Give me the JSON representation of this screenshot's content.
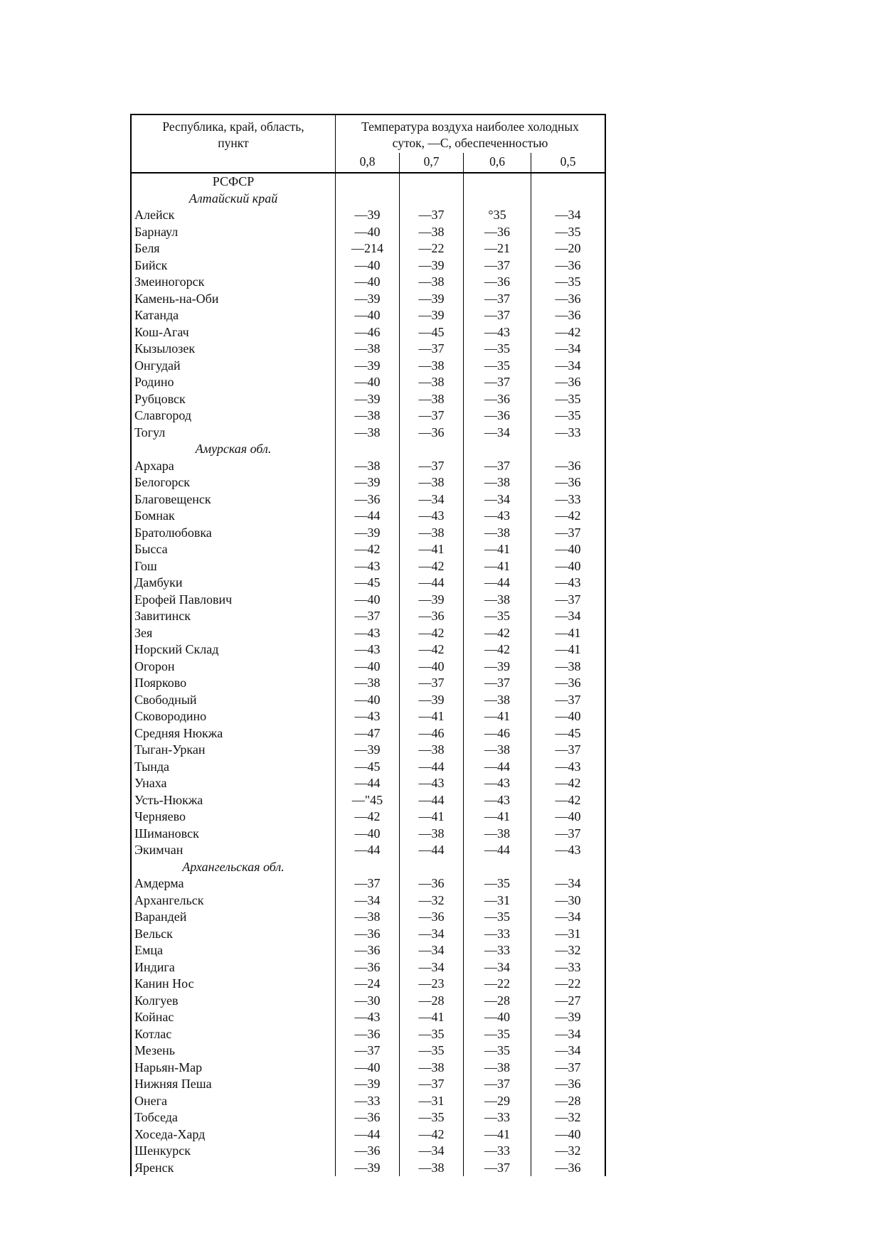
{
  "table": {
    "name_header_line1": "Республика, край, область,",
    "name_header_line2": "пункт",
    "temp_header_line1": "Температура воздуха наиболее холодных",
    "temp_header_line2": "суток, —С, обеспеченностью",
    "prob_headers": [
      "0,8",
      "0,7",
      "0,6",
      "0,5"
    ],
    "rows": [
      {
        "type": "group",
        "label": "РСФСР",
        "italic": false
      },
      {
        "type": "group",
        "label": "Алтайский край",
        "italic": true
      },
      {
        "type": "data",
        "name": "Алейск",
        "values": [
          "—39",
          "—37",
          "°35",
          "—34"
        ]
      },
      {
        "type": "data",
        "name": "Барнаул",
        "values": [
          "—40",
          "—38",
          "—36",
          "—35"
        ]
      },
      {
        "type": "data",
        "name": "Беля",
        "values": [
          "—214",
          "—22",
          "—21",
          "—20"
        ]
      },
      {
        "type": "data",
        "name": "Бийск",
        "values": [
          "—40",
          "—39",
          "—37",
          "—36"
        ]
      },
      {
        "type": "data",
        "name": "Змеиногорск",
        "values": [
          "—40",
          "—38",
          "—36",
          "—35"
        ]
      },
      {
        "type": "data",
        "name": "Камень-на-Оби",
        "values": [
          "—39",
          "—39",
          "—37",
          "—36"
        ]
      },
      {
        "type": "data",
        "name": "Катанда",
        "values": [
          "—40",
          "—39",
          "—37",
          "—36"
        ]
      },
      {
        "type": "data",
        "name": "Кош-Агач",
        "values": [
          "—46",
          "—45",
          "—43",
          "—42"
        ]
      },
      {
        "type": "data",
        "name": "Кызылозек",
        "values": [
          "—38",
          "—37",
          "—35",
          "—34"
        ]
      },
      {
        "type": "data",
        "name": "Онгудай",
        "values": [
          "—39",
          "—38",
          "—35",
          "—34"
        ]
      },
      {
        "type": "data",
        "name": "Родино",
        "values": [
          "—40",
          "—38",
          "—37",
          "—36"
        ]
      },
      {
        "type": "data",
        "name": "Рубцовск",
        "values": [
          "—39",
          "—38",
          "—36",
          "—35"
        ]
      },
      {
        "type": "data",
        "name": "Славгород",
        "values": [
          "—38",
          "—37",
          "—36",
          "—35"
        ]
      },
      {
        "type": "data",
        "name": "Тогул",
        "values": [
          "—38",
          "—36",
          "—34",
          "—33"
        ]
      },
      {
        "type": "group",
        "label": "Амурская обл.",
        "italic": true
      },
      {
        "type": "data",
        "name": "Архара",
        "values": [
          "—38",
          "—37",
          "—37",
          "—36"
        ]
      },
      {
        "type": "data",
        "name": "Белогорск",
        "values": [
          "—39",
          "—38",
          "—38",
          "—36"
        ]
      },
      {
        "type": "data",
        "name": "Благовещенск",
        "values": [
          "—36",
          "—34",
          "—34",
          "—33"
        ]
      },
      {
        "type": "data",
        "name": "Бомнак",
        "values": [
          "—44",
          "—43",
          "—43",
          "—42"
        ]
      },
      {
        "type": "data",
        "name": "Братолюбовка",
        "values": [
          "—39",
          "—38",
          "—38",
          "—37"
        ]
      },
      {
        "type": "data",
        "name": "Бысса",
        "values": [
          "—42",
          "—41",
          "—41",
          "—40"
        ]
      },
      {
        "type": "data",
        "name": "Гош",
        "values": [
          "—43",
          "—42",
          "—41",
          "—40"
        ]
      },
      {
        "type": "data",
        "name": "Дамбуки",
        "values": [
          "—45",
          "—44",
          "—44",
          "—43"
        ]
      },
      {
        "type": "data",
        "name": "Ерофей Павлович",
        "values": [
          "—40",
          "—39",
          "—38",
          "—37"
        ]
      },
      {
        "type": "data",
        "name": "Завитинск",
        "values": [
          "—37",
          "—36",
          "—35",
          "—34"
        ]
      },
      {
        "type": "data",
        "name": "Зея",
        "values": [
          "—43",
          "—42",
          "—42",
          "—41"
        ]
      },
      {
        "type": "data",
        "name": "Норский Склад",
        "values": [
          "—43",
          "—42",
          "—42",
          "—41"
        ]
      },
      {
        "type": "data",
        "name": "Огорон",
        "values": [
          "—40",
          "—40",
          "—39",
          "—38"
        ]
      },
      {
        "type": "data",
        "name": "Поярково",
        "values": [
          "—38",
          "—37",
          "—37",
          "—36"
        ]
      },
      {
        "type": "data",
        "name": "Свободный",
        "values": [
          "—40",
          "—39",
          "—38",
          "—37"
        ]
      },
      {
        "type": "data",
        "name": "Сковородино",
        "values": [
          "—43",
          "—41",
          "—41",
          "—40"
        ]
      },
      {
        "type": "data",
        "name": "Средняя Нюкжа",
        "values": [
          "—47",
          "—46",
          "—46",
          "—45"
        ]
      },
      {
        "type": "data",
        "name": "Тыган-Уркан",
        "values": [
          "—39",
          "—38",
          "—38",
          "—37"
        ]
      },
      {
        "type": "data",
        "name": "Тында",
        "values": [
          "—45",
          "—44",
          "—44",
          "—43"
        ]
      },
      {
        "type": "data",
        "name": "Унаха",
        "values": [
          "—44",
          "—43",
          "—43",
          "—42"
        ]
      },
      {
        "type": "data",
        "name": "Усть-Нюкжа",
        "values": [
          "—\"45",
          "—44",
          "—43",
          "—42"
        ]
      },
      {
        "type": "data",
        "name": "Черняево",
        "values": [
          "—42",
          "—41",
          "—41",
          "—40"
        ]
      },
      {
        "type": "data",
        "name": "Шимановск",
        "values": [
          "—40",
          "—38",
          "—38",
          "—37"
        ]
      },
      {
        "type": "data",
        "name": "Экимчан",
        "values": [
          "—44",
          "—44",
          "—44",
          "—43"
        ]
      },
      {
        "type": "group",
        "label": "Архангельская обл.",
        "italic": true
      },
      {
        "type": "data",
        "name": "Амдерма",
        "values": [
          "—37",
          "—36",
          "—35",
          "—34"
        ]
      },
      {
        "type": "data",
        "name": "Архангельск",
        "values": [
          "—34",
          "—32",
          "—31",
          "—30"
        ]
      },
      {
        "type": "data",
        "name": "Варандей",
        "values": [
          "—38",
          "—36",
          "—35",
          "—34"
        ]
      },
      {
        "type": "data",
        "name": "Вельск",
        "values": [
          "—36",
          "—34",
          "—33",
          "—31"
        ]
      },
      {
        "type": "data",
        "name": "Емца",
        "values": [
          "—36",
          "—34",
          "—33",
          "—32"
        ]
      },
      {
        "type": "data",
        "name": "Индига",
        "values": [
          "—36",
          "—34",
          "—34",
          "—33"
        ]
      },
      {
        "type": "data",
        "name": "Канин Нос",
        "values": [
          "—24",
          "—23",
          "—22",
          "—22"
        ]
      },
      {
        "type": "data",
        "name": "Колгуев",
        "values": [
          "—30",
          "—28",
          "—28",
          "—27"
        ]
      },
      {
        "type": "data",
        "name": "Койнас",
        "values": [
          "—43",
          "—41",
          "—40",
          "—39"
        ]
      },
      {
        "type": "data",
        "name": "Котлас",
        "values": [
          "—36",
          "—35",
          "—35",
          "—34"
        ]
      },
      {
        "type": "data",
        "name": "Мезень",
        "values": [
          "—37",
          "—35",
          "—35",
          "—34"
        ]
      },
      {
        "type": "data",
        "name": "Нарьян-Мар",
        "values": [
          "—40",
          "—38",
          "—38",
          "—37"
        ]
      },
      {
        "type": "data",
        "name": "Нижняя Пеша",
        "values": [
          "—39",
          "—37",
          "—37",
          "—36"
        ]
      },
      {
        "type": "data",
        "name": "Онега",
        "values": [
          "—33",
          "—31",
          "—29",
          "—28"
        ]
      },
      {
        "type": "data",
        "name": "Тобседа",
        "values": [
          "—36",
          "—35",
          "—33",
          "—32"
        ]
      },
      {
        "type": "data",
        "name": "Хоседа-Хард",
        "values": [
          "—44",
          "—42",
          "—41",
          "—40"
        ]
      },
      {
        "type": "data",
        "name": "Шенкурск",
        "values": [
          "—36",
          "—34",
          "—33",
          "—32"
        ]
      },
      {
        "type": "data",
        "name": "Яренск",
        "values": [
          "—39",
          "—38",
          "—37",
          "—36"
        ]
      }
    ]
  }
}
